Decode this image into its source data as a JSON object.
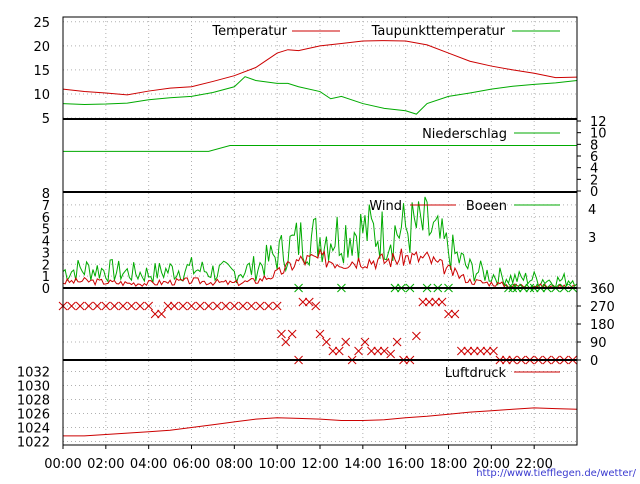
{
  "source_link": "http://www.tiefflegen.de/wetter/",
  "x_ticks": [
    "00:00",
    "02:00",
    "04:00",
    "06:00",
    "08:00",
    "10:00",
    "12:00",
    "14:00",
    "16:00",
    "18:00",
    "20:00",
    "22:00"
  ],
  "colors": {
    "red": "#cc0000",
    "green": "#00aa00",
    "grid": "#b0b0b0"
  },
  "chart_data": [
    {
      "type": "line",
      "panel": "temperature",
      "ylim": [
        5,
        26
      ],
      "y_ticks": [
        "25",
        "20",
        "15",
        "10",
        "5"
      ],
      "legend_placement": "top-right",
      "series": [
        {
          "name": "Temperatur",
          "color": "#cc0000",
          "x": [
            0,
            1,
            2,
            3,
            4,
            5,
            6,
            7,
            8,
            9,
            9.5,
            10,
            10.5,
            11,
            12,
            13,
            14,
            15,
            16,
            17,
            18,
            19,
            20,
            21,
            22,
            23,
            24
          ],
          "y": [
            11,
            10.5,
            10.2,
            9.8,
            10.6,
            11.2,
            11.5,
            12.6,
            13.8,
            15.5,
            17,
            18.5,
            19.2,
            19,
            20,
            20.5,
            21,
            21.1,
            21,
            20.2,
            18.5,
            16.8,
            15.8,
            15,
            14.3,
            13.4,
            13.5
          ]
        },
        {
          "name": "Taupunkttemperatur",
          "color": "#00aa00",
          "x": [
            0,
            1,
            2,
            3,
            4,
            5,
            6,
            7,
            8,
            8.5,
            9,
            10,
            10.5,
            11,
            12,
            12.5,
            13,
            14,
            15,
            16,
            16.5,
            17,
            18,
            19,
            20,
            21,
            22,
            23,
            24
          ],
          "y": [
            8,
            7.8,
            7.9,
            8.1,
            8.8,
            9.2,
            9.5,
            10.3,
            11.5,
            13.6,
            12.8,
            12.2,
            12.2,
            11.5,
            10.5,
            9,
            9.5,
            8,
            7,
            6.5,
            5.8,
            8,
            9.5,
            10.2,
            11,
            11.6,
            12,
            12.3,
            12.8
          ]
        }
      ]
    },
    {
      "type": "line",
      "panel": "precipitation",
      "ylim": [
        0,
        12
      ],
      "y_ticks": [
        "12",
        "10",
        "8",
        "6",
        "4",
        "2",
        "0"
      ],
      "legend_placement": "top-right",
      "series": [
        {
          "name": "Niederschlag",
          "color": "#00aa00",
          "x": [
            0,
            6.8,
            7.8,
            24
          ],
          "y": [
            6.8,
            6.8,
            7.8,
            7.8
          ]
        }
      ]
    },
    {
      "type": "line",
      "panel": "wind",
      "ylim": [
        0,
        8
      ],
      "y_ticks": [
        "8",
        "7",
        "6",
        "5",
        "4",
        "3",
        "2",
        "1",
        "0"
      ],
      "right_ticks": [
        "4",
        "3"
      ],
      "legend_placement": "top-right",
      "series": [
        {
          "name": "Wind",
          "color": "#cc0000",
          "x": [
            0,
            1,
            2,
            3,
            4,
            5,
            6,
            7,
            8,
            9,
            10,
            11,
            12,
            13,
            14,
            15,
            16,
            17,
            18,
            19,
            20,
            21,
            22,
            23,
            24
          ],
          "y": [
            0.5,
            0.6,
            0.5,
            0.4,
            0.4,
            0.5,
            0.6,
            0.5,
            0.4,
            0.6,
            1.2,
            2.3,
            2.5,
            2.2,
            2.4,
            2.3,
            2.6,
            2.5,
            1.5,
            0.6,
            0.4,
            0.2,
            0.2,
            0.1,
            0.2
          ]
        },
        {
          "name": "Boeen",
          "color": "#00aa00",
          "x": [
            0,
            1,
            2,
            3,
            4,
            5,
            6,
            7,
            8,
            9,
            10,
            11,
            12,
            13,
            14,
            15,
            16,
            17,
            18,
            19,
            20,
            21,
            22,
            23,
            24
          ],
          "y": [
            1.4,
            1.6,
            1.5,
            1.3,
            1.2,
            1.5,
            1.6,
            1.4,
            1.3,
            1.7,
            2.8,
            4,
            4.3,
            4.6,
            4.9,
            4.5,
            5,
            5.1,
            3.2,
            1.6,
            1.1,
            0.8,
            0.8,
            0.6,
            0.8
          ]
        }
      ]
    },
    {
      "type": "scatter",
      "panel": "direction",
      "ylim": [
        0,
        360
      ],
      "y_ticks_right": [
        "360",
        "270",
        "180",
        "90",
        "0"
      ],
      "series": [
        {
          "name": "",
          "color": "#cc0000",
          "x": [
            0,
            0.4,
            0.8,
            1.2,
            1.6,
            2,
            2.4,
            2.8,
            3.2,
            3.6,
            4,
            4.3,
            4.6,
            4.9,
            5.2,
            5.6,
            6,
            6.4,
            6.8,
            7.2,
            7.6,
            8,
            8.4,
            8.8,
            9.2,
            9.6,
            10,
            10.2,
            10.4,
            10.7,
            11,
            11.2,
            11.5,
            11.8,
            12,
            12.3,
            12.6,
            12.9,
            13.2,
            13.5,
            13.8,
            14.1,
            14.4,
            14.7,
            15,
            15.3,
            15.6,
            15.9,
            16.2,
            16.5,
            16.8,
            17.1,
            17.4,
            17.7,
            18,
            18.3,
            18.6,
            18.9,
            19.2,
            19.5,
            19.8,
            20.1,
            20.4,
            20.7,
            21,
            21.4,
            21.8,
            22.2,
            22.6,
            23,
            23.4,
            23.8
          ],
          "y": [
            270,
            270,
            270,
            270,
            270,
            270,
            270,
            270,
            270,
            270,
            270,
            230,
            230,
            270,
            270,
            270,
            270,
            270,
            270,
            270,
            270,
            270,
            270,
            270,
            270,
            270,
            270,
            130,
            90,
            130,
            0,
            290,
            290,
            270,
            130,
            90,
            45,
            45,
            90,
            0,
            45,
            90,
            45,
            45,
            45,
            30,
            90,
            0,
            0,
            120,
            290,
            290,
            290,
            290,
            230,
            230,
            45,
            45,
            45,
            45,
            45,
            45,
            0,
            0,
            0,
            0,
            0,
            0,
            0,
            0,
            0,
            0
          ]
        },
        {
          "name": "",
          "color": "#00aa00",
          "x": [
            11,
            13,
            15.5,
            15.8,
            16.2,
            17,
            17.5,
            18,
            20.8,
            21,
            21.2,
            21.5,
            21.8,
            22,
            22.3,
            22.6,
            23,
            23.4,
            23.8
          ],
          "y": [
            360,
            360,
            360,
            360,
            360,
            360,
            360,
            360,
            360,
            360,
            360,
            360,
            360,
            360,
            360,
            360,
            360,
            360,
            360
          ]
        }
      ]
    },
    {
      "type": "line",
      "panel": "pressure",
      "ylim": [
        1021.5,
        1033.5
      ],
      "y_ticks": [
        "1032",
        "1030",
        "1028",
        "1026",
        "1024",
        "1022"
      ],
      "legend_placement": "top-right",
      "series": [
        {
          "name": "Luftdruck",
          "color": "#cc0000",
          "x": [
            0,
            1,
            2,
            3,
            4,
            5,
            6,
            7,
            8,
            9,
            10,
            11,
            12,
            13,
            14,
            15,
            16,
            17,
            18,
            19,
            20,
            21,
            22,
            23,
            24
          ],
          "y": [
            1022.8,
            1022.8,
            1023,
            1023.2,
            1023.4,
            1023.6,
            1024,
            1024.4,
            1024.8,
            1025.2,
            1025.4,
            1025.3,
            1025.2,
            1025,
            1025,
            1025.1,
            1025.4,
            1025.6,
            1025.9,
            1026.2,
            1026.4,
            1026.6,
            1026.8,
            1026.7,
            1026.6
          ]
        }
      ]
    }
  ]
}
